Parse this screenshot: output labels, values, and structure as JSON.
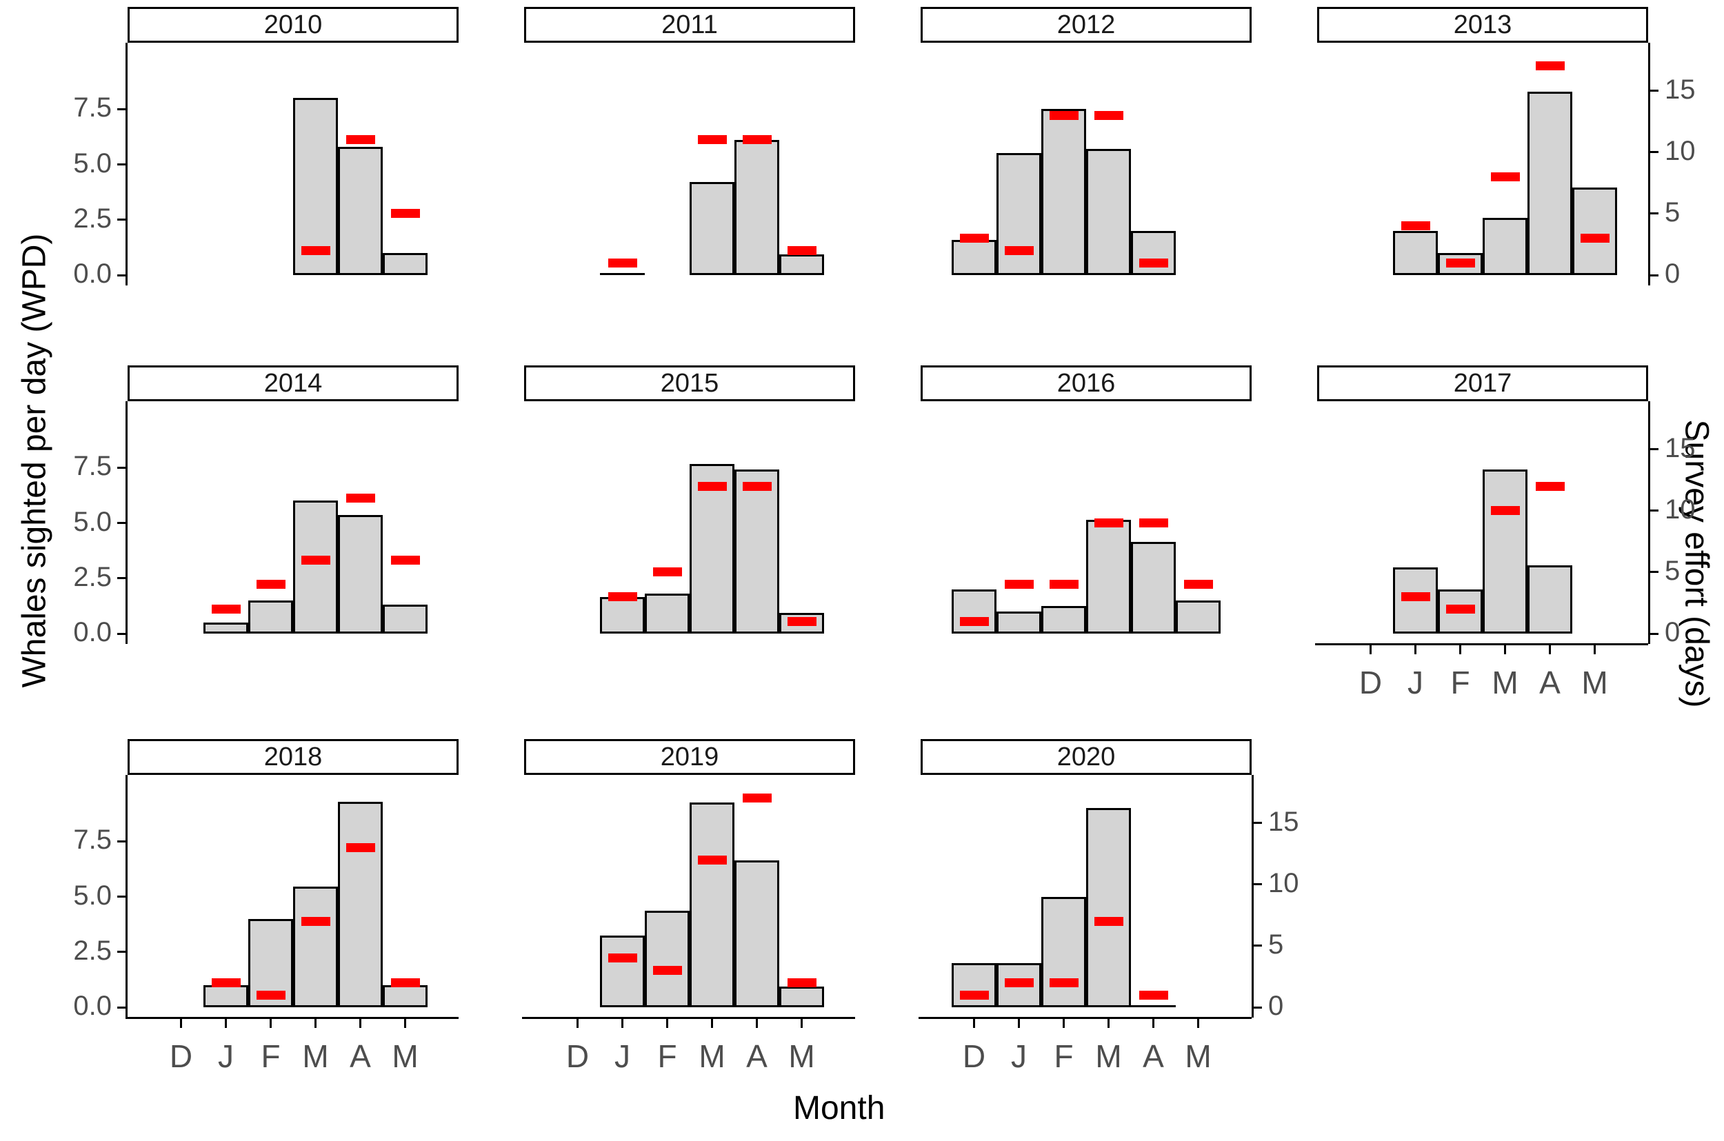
{
  "figure": {
    "left_axis_title": "Whales sighted per day (WPD)",
    "right_axis_title": "Survey effort (days)",
    "x_axis_title": "Month",
    "left_tick_labels": [
      "0.0",
      "2.5",
      "5.0",
      "7.5"
    ],
    "right_tick_labels": [
      "0",
      "5",
      "10",
      "15"
    ],
    "colors": {
      "bar_fill": "#d4d4d4",
      "bar_stroke": "#000000",
      "effort_dash": "#ff0000",
      "tick_text": "#4d4d4d",
      "axis_line": "#000000",
      "strip_background": "#ffffff",
      "strip_border": "#000000"
    }
  },
  "chart_data": {
    "type": "bar",
    "title": "",
    "xlabel": "Month",
    "ylabel_left": "Whales sighted per day (WPD)",
    "ylabel_right": "Survey effort (days)",
    "categories": [
      "D",
      "J",
      "F",
      "M",
      "A",
      "M"
    ],
    "left_ylim": [
      0,
      10.5
    ],
    "right_ylim": [
      0,
      18.9
    ],
    "right_axis_scale_factor": 1.8,
    "left_ticks": [
      0.0,
      2.5,
      5.0,
      7.5
    ],
    "right_ticks": [
      0,
      5,
      10,
      15
    ],
    "grid": "off",
    "legend": "none",
    "series_note": "wpd = gray bar height on left axis; effort_days = red dash on right axis; null = no data; 0 = zero-height bar drawn as flat line",
    "facets": [
      {
        "year": "2010",
        "wpd": [
          null,
          null,
          null,
          8.0,
          5.8,
          1.0
        ],
        "effort_days": [
          null,
          null,
          null,
          2,
          11,
          5
        ]
      },
      {
        "year": "2011",
        "wpd": [
          null,
          0,
          null,
          4.2,
          6.1,
          0.95
        ],
        "effort_days": [
          null,
          1,
          null,
          11,
          11,
          2
        ]
      },
      {
        "year": "2012",
        "wpd": [
          1.6,
          5.5,
          7.5,
          5.7,
          2.0,
          null
        ],
        "effort_days": [
          3,
          2,
          13,
          13,
          1,
          null
        ]
      },
      {
        "year": "2013",
        "wpd": [
          null,
          2.0,
          1.0,
          2.6,
          8.3,
          3.95
        ],
        "effort_days": [
          null,
          4,
          1,
          8,
          17,
          3
        ]
      },
      {
        "year": "2014",
        "wpd": [
          null,
          0.5,
          1.5,
          6.0,
          5.35,
          1.3
        ],
        "effort_days": [
          null,
          2,
          4,
          6,
          11,
          6
        ]
      },
      {
        "year": "2015",
        "wpd": [
          null,
          1.65,
          1.8,
          7.65,
          7.4,
          0.95
        ],
        "effort_days": [
          null,
          3,
          5,
          12,
          12,
          1
        ]
      },
      {
        "year": "2016",
        "wpd": [
          2.0,
          1.0,
          1.25,
          5.15,
          4.15,
          1.5
        ],
        "effort_days": [
          1,
          4,
          4,
          9,
          9,
          4
        ]
      },
      {
        "year": "2017",
        "wpd": [
          null,
          3.0,
          2.0,
          7.4,
          3.1,
          null
        ],
        "effort_days": [
          null,
          3,
          2,
          10,
          12,
          null
        ]
      },
      {
        "year": "2018",
        "wpd": [
          null,
          1.0,
          4.0,
          5.45,
          9.3,
          1.0
        ],
        "effort_days": [
          null,
          2,
          1,
          7,
          13,
          2
        ]
      },
      {
        "year": "2019",
        "wpd": [
          null,
          3.25,
          4.35,
          9.25,
          6.65,
          0.95
        ],
        "effort_days": [
          null,
          4,
          3,
          12,
          17,
          2
        ]
      },
      {
        "year": "2020",
        "wpd": [
          2.0,
          2.0,
          5.0,
          9.0,
          0,
          null
        ],
        "effort_days": [
          1,
          2,
          2,
          7,
          1,
          null
        ]
      }
    ]
  }
}
